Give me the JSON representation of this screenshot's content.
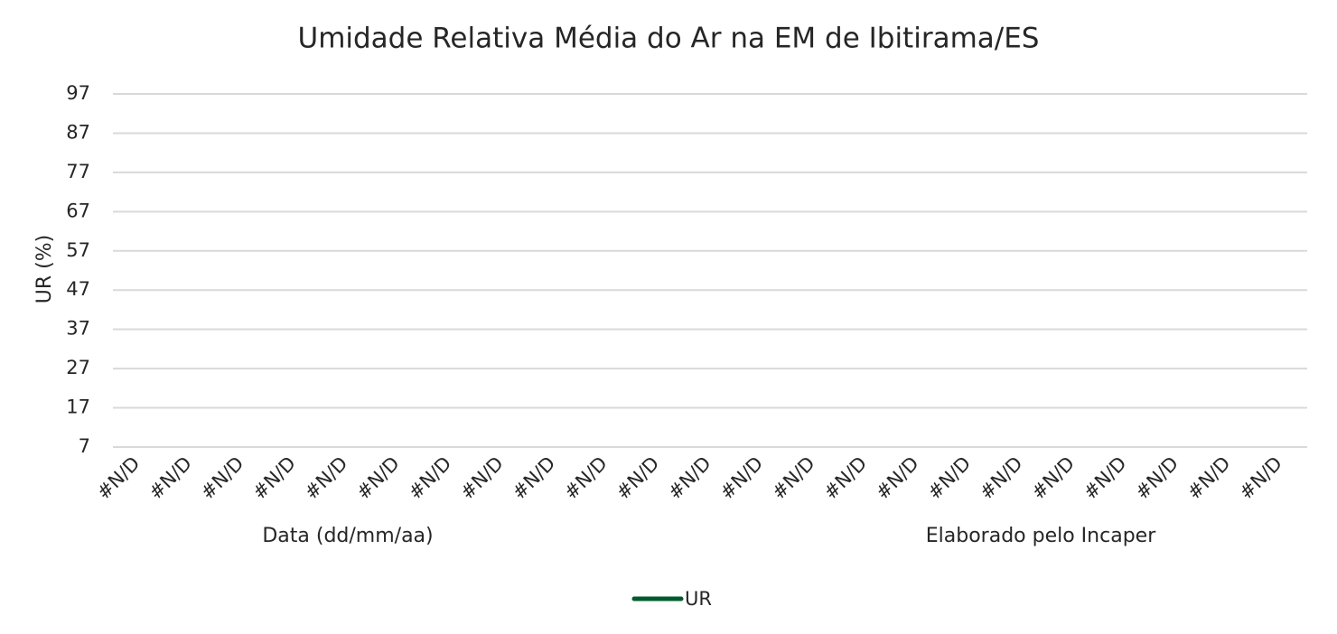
{
  "chart_data": {
    "type": "line",
    "title": "Umidade Relativa Média do Ar na EM de Ibitirama/ES",
    "y_label": "UR (%)",
    "x_label": "Data (dd/mm/aa)",
    "annotation": "Elaborado pelo Incaper",
    "categories": [
      "#N/D",
      "#N/D",
      "#N/D",
      "#N/D",
      "#N/D",
      "#N/D",
      "#N/D",
      "#N/D",
      "#N/D",
      "#N/D",
      "#N/D",
      "#N/D",
      "#N/D",
      "#N/D",
      "#N/D",
      "#N/D",
      "#N/D",
      "#N/D",
      "#N/D",
      "#N/D",
      "#N/D",
      "#N/D",
      "#N/D"
    ],
    "series": [
      {
        "name": "UR",
        "color": "#005a2b",
        "values": [
          null,
          null,
          null,
          null,
          null,
          null,
          null,
          null,
          null,
          null,
          null,
          null,
          null,
          null,
          null,
          null,
          null,
          null,
          null,
          null,
          null,
          null,
          null
        ]
      }
    ],
    "ylim": [
      7,
      97
    ],
    "yticks": [
      7,
      17,
      27,
      37,
      47,
      57,
      67,
      77,
      87,
      97
    ],
    "grid": true,
    "legend": "bottom"
  }
}
